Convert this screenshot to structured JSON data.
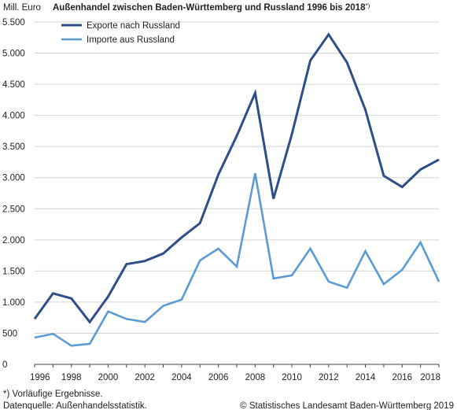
{
  "chart_data": {
    "type": "line",
    "title": "Außenhandel zwischen Baden-Württemberg und Russland 1996 bis 2018",
    "title_suffix": "*)",
    "ylabel": "Mill. Euro",
    "xlabel": "",
    "x": [
      1996,
      1997,
      1998,
      1999,
      2000,
      2001,
      2002,
      2003,
      2004,
      2005,
      2006,
      2007,
      2008,
      2009,
      2010,
      2011,
      2012,
      2013,
      2014,
      2015,
      2016,
      2017,
      2018
    ],
    "series": [
      {
        "name": "Exporte nach Russland",
        "color": "#2e4e8a",
        "values": [
          730,
          1140,
          1060,
          680,
          1090,
          1610,
          1660,
          1780,
          2040,
          2270,
          3050,
          3670,
          4360,
          2660,
          3700,
          4880,
          5300,
          4850,
          4090,
          3030,
          2850,
          3130,
          3290
        ]
      },
      {
        "name": "Importe aus Russland",
        "color": "#5b9bd5",
        "values": [
          430,
          490,
          300,
          330,
          850,
          730,
          680,
          940,
          1040,
          1670,
          1860,
          1570,
          3070,
          1380,
          1430,
          1860,
          1330,
          1230,
          1820,
          1290,
          1520,
          1960,
          1330
        ]
      }
    ],
    "ylim": [
      0,
      5500
    ],
    "xlim": [
      1996,
      2018
    ],
    "yticks": [
      0,
      500,
      1000,
      1500,
      2000,
      2500,
      3000,
      3500,
      4000,
      4500,
      5000,
      5500
    ],
    "ytick_labels": [
      "0",
      "500",
      "1.000",
      "1.500",
      "2.000",
      "2.500",
      "3.000",
      "3.500",
      "4.000",
      "4.500",
      "5.000",
      "5.500"
    ],
    "xticks": [
      1996,
      1998,
      2000,
      2002,
      2004,
      2006,
      2008,
      2010,
      2012,
      2014,
      2016,
      2018
    ],
    "grid": "horizontal",
    "legend_position": "top-left",
    "footnote": "*) Vorläufige Ergebnisse.",
    "source": "Datenquelle: Außenhandelsstatistik.",
    "copyright": "© Statistisches Landesamt Baden-Württemberg 2019"
  }
}
